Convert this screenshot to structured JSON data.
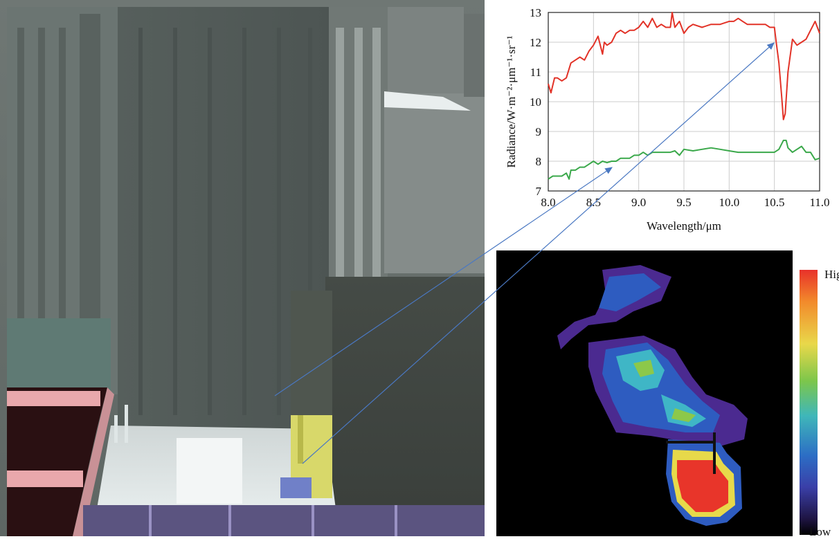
{
  "chart_data": {
    "type": "line",
    "xlabel": "Wavelength/μm",
    "ylabel": "Radiance/W·m⁻²·μm⁻¹·sr⁻¹",
    "xlim": [
      8.0,
      11.0
    ],
    "ylim": [
      7,
      13
    ],
    "xticks": [
      "8.0",
      "8.5",
      "9.0",
      "9.5",
      "10.0",
      "10.5",
      "11.0"
    ],
    "yticks": [
      "7",
      "8",
      "9",
      "10",
      "11",
      "12",
      "13"
    ],
    "grid": true,
    "series": [
      {
        "color": "#e23227",
        "x": [
          8.0,
          8.03,
          8.07,
          8.1,
          8.15,
          8.2,
          8.25,
          8.3,
          8.35,
          8.4,
          8.45,
          8.5,
          8.55,
          8.6,
          8.62,
          8.65,
          8.7,
          8.75,
          8.8,
          8.85,
          8.9,
          8.95,
          9.0,
          9.05,
          9.1,
          9.15,
          9.2,
          9.25,
          9.3,
          9.35,
          9.37,
          9.4,
          9.45,
          9.5,
          9.55,
          9.6,
          9.7,
          9.8,
          9.9,
          10.0,
          10.05,
          10.1,
          10.15,
          10.2,
          10.3,
          10.4,
          10.45,
          10.5,
          10.52,
          10.55,
          10.58,
          10.6,
          10.62,
          10.65,
          10.7,
          10.75,
          10.8,
          10.85,
          10.9,
          10.95,
          11.0
        ],
        "values": [
          10.6,
          10.3,
          10.8,
          10.8,
          10.7,
          10.8,
          11.3,
          11.4,
          11.5,
          11.4,
          11.7,
          11.9,
          12.2,
          11.6,
          12.0,
          11.9,
          12.0,
          12.3,
          12.4,
          12.3,
          12.4,
          12.4,
          12.5,
          12.7,
          12.5,
          12.8,
          12.5,
          12.6,
          12.5,
          12.5,
          13.0,
          12.5,
          12.7,
          12.3,
          12.5,
          12.6,
          12.5,
          12.6,
          12.6,
          12.7,
          12.7,
          12.8,
          12.7,
          12.6,
          12.6,
          12.6,
          12.5,
          12.5,
          12.0,
          11.3,
          10.2,
          9.4,
          9.6,
          11.0,
          12.1,
          11.9,
          12.0,
          12.1,
          12.4,
          12.7,
          12.3
        ]
      },
      {
        "color": "#3aa84a",
        "x": [
          8.0,
          8.05,
          8.1,
          8.15,
          8.2,
          8.23,
          8.25,
          8.3,
          8.35,
          8.4,
          8.45,
          8.5,
          8.55,
          8.6,
          8.65,
          8.7,
          8.75,
          8.8,
          8.85,
          8.9,
          8.95,
          9.0,
          9.05,
          9.1,
          9.15,
          9.2,
          9.3,
          9.35,
          9.4,
          9.45,
          9.5,
          9.6,
          9.7,
          9.8,
          9.9,
          10.0,
          10.1,
          10.2,
          10.3,
          10.4,
          10.5,
          10.55,
          10.6,
          10.63,
          10.65,
          10.7,
          10.75,
          10.8,
          10.85,
          10.9,
          10.95,
          11.0
        ],
        "values": [
          7.4,
          7.5,
          7.5,
          7.5,
          7.6,
          7.4,
          7.7,
          7.7,
          7.8,
          7.8,
          7.9,
          8.0,
          7.9,
          8.0,
          7.95,
          8.0,
          8.0,
          8.1,
          8.1,
          8.1,
          8.2,
          8.2,
          8.3,
          8.2,
          8.3,
          8.3,
          8.3,
          8.3,
          8.35,
          8.2,
          8.4,
          8.35,
          8.4,
          8.45,
          8.4,
          8.35,
          8.3,
          8.3,
          8.3,
          8.3,
          8.3,
          8.4,
          8.7,
          8.7,
          8.45,
          8.3,
          8.4,
          8.5,
          8.3,
          8.3,
          8.05,
          8.1
        ]
      }
    ]
  },
  "heatmap": {
    "colorbar_high": "High",
    "colorbar_low": "Low"
  }
}
